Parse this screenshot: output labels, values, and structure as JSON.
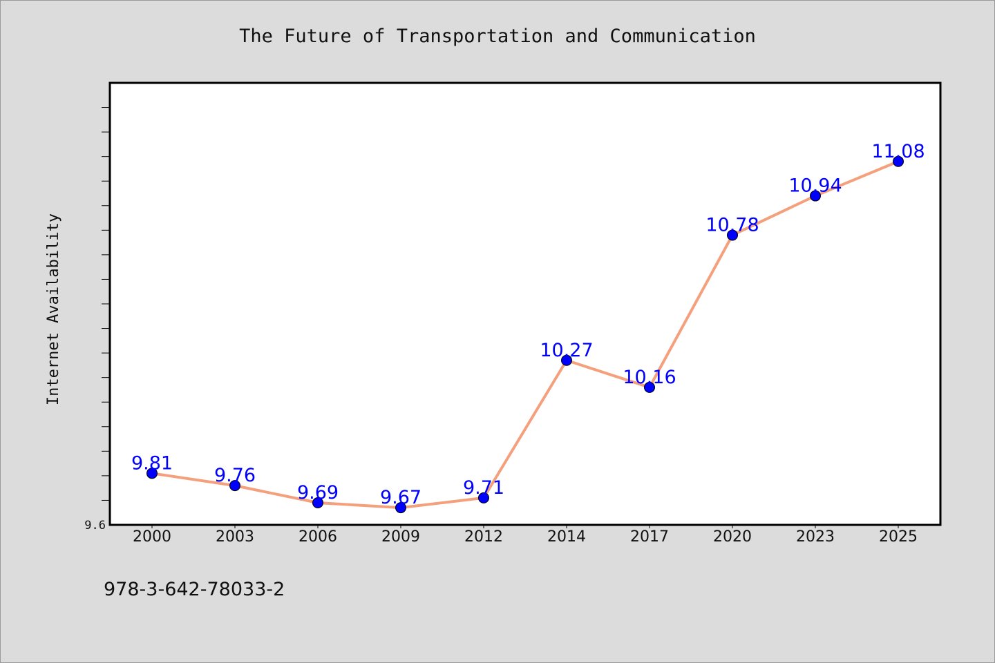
{
  "chart_data": {
    "type": "line",
    "title": "The Future of Transportation and Communication",
    "xlabel": "",
    "ylabel": "Internet Availability",
    "categories": [
      "2000",
      "2003",
      "2006",
      "2009",
      "2012",
      "2014",
      "2017",
      "2020",
      "2023",
      "2025"
    ],
    "series": [
      {
        "values": [
          9.81,
          9.76,
          9.69,
          9.67,
          9.71,
          10.27,
          10.16,
          10.78,
          10.94,
          11.08
        ]
      }
    ],
    "data_labels": [
      "9.81",
      "9.76",
      "9.69",
      "9.67",
      "9.71",
      "10.27",
      "10.16",
      "10.78",
      "10.94",
      "11.08"
    ],
    "ylim": [
      9.6,
      11.4
    ],
    "yticks": [
      "9.6"
    ],
    "grid": false,
    "legend": "none",
    "colors": {
      "line": "#f4a07c",
      "marker": "#0000ff",
      "label": "#0000ff",
      "background": "#dcdcdc",
      "plot_background": "#ffffff"
    }
  },
  "footer_text": "978-3-642-78033-2"
}
